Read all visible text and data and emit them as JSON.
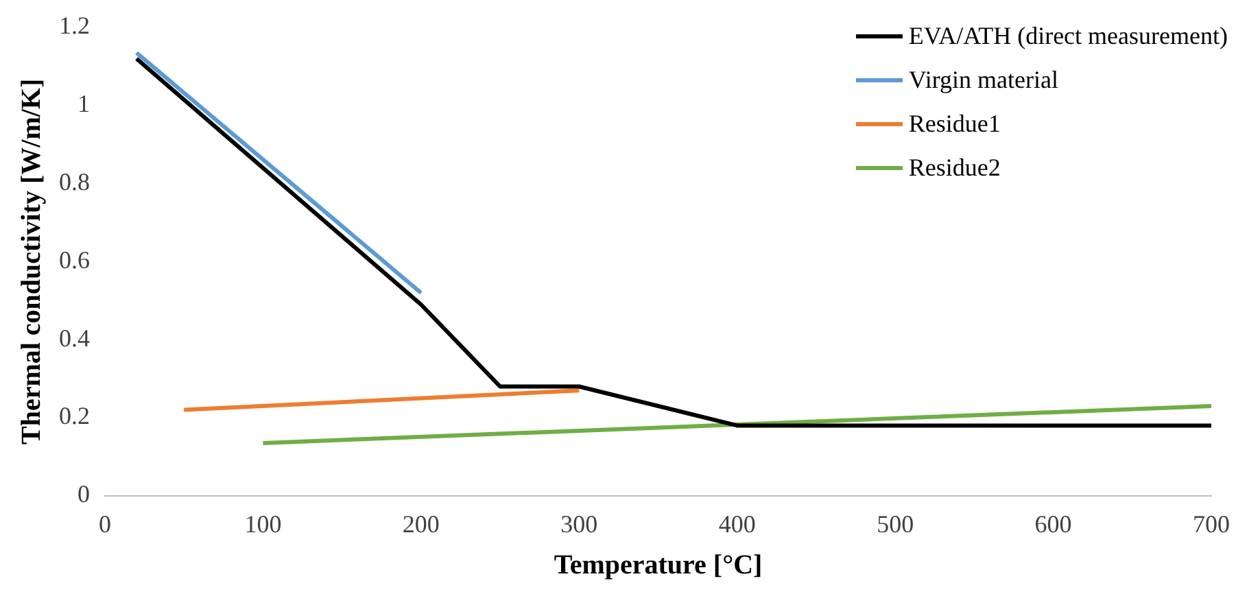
{
  "chart_data": {
    "type": "line",
    "xlabel": "Temperature [°C]",
    "ylabel": "Thermal conductivity [W/m/K]",
    "xlim": [
      0,
      700
    ],
    "xticks": [
      0,
      100,
      200,
      300,
      400,
      500,
      600,
      700
    ],
    "ylim": [
      0,
      1.2
    ],
    "yticks": [
      0,
      0.2,
      0.4,
      0.6,
      0.8,
      1,
      1.2
    ],
    "grid": false,
    "legend": "top right",
    "marker": "none",
    "line_style": "solid",
    "series": [
      {
        "name": "EVA/ATH (direct measurement)",
        "color": "#000000",
        "x": [
          20,
          200,
          250,
          300,
          400,
          700
        ],
        "values": [
          1.12,
          0.49,
          0.28,
          0.28,
          0.18,
          0.18
        ]
      },
      {
        "name": "Virgin material",
        "color": "#5b9bd5",
        "x": [
          20,
          200
        ],
        "values": [
          1.135,
          0.52
        ]
      },
      {
        "name": "Residue1",
        "color": "#ed7d31",
        "x": [
          50,
          300
        ],
        "values": [
          0.22,
          0.27
        ]
      },
      {
        "name": "Residue2",
        "color": "#70ad47",
        "x": [
          100,
          700
        ],
        "values": [
          0.135,
          0.23
        ]
      }
    ]
  }
}
